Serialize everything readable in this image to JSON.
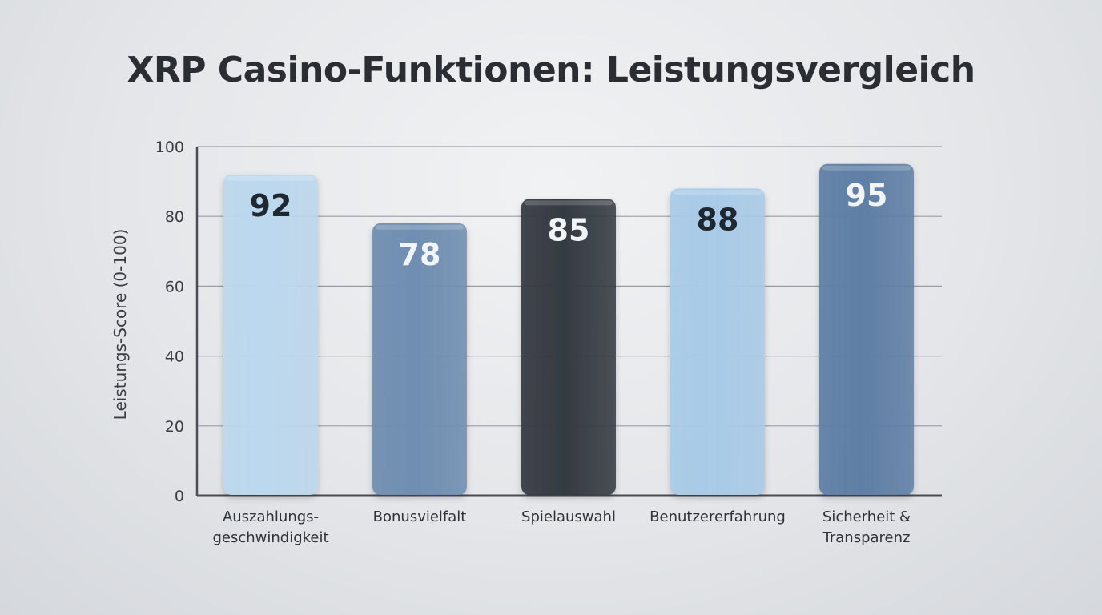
{
  "chart_data": {
    "type": "bar",
    "title": "XRP Casino-Funktionen: Leistungsvergleich",
    "xlabel": "",
    "ylabel": "Leistungs-Score (0-100)",
    "ylim": [
      0,
      100
    ],
    "yticks": [
      0,
      20,
      40,
      60,
      80,
      100
    ],
    "grid": true,
    "categories": [
      [
        "Auszahlungs-",
        "geschwindigkeit"
      ],
      [
        "Bonusvielfalt"
      ],
      [
        "Spielauswahl"
      ],
      [
        "Benutzererfahrung"
      ],
      [
        "Sicherheit &",
        "Transparenz"
      ]
    ],
    "values": [
      92,
      78,
      85,
      88,
      95
    ],
    "bar_colors": [
      "#bcd8ee",
      "#6f8eb1",
      "#353a42",
      "#a9cbe8",
      "#5f7fa6"
    ],
    "label_colors": [
      "#1f2730",
      "#f2f5f8",
      "#f2f5f8",
      "#1f2730",
      "#f2f5f8"
    ]
  }
}
